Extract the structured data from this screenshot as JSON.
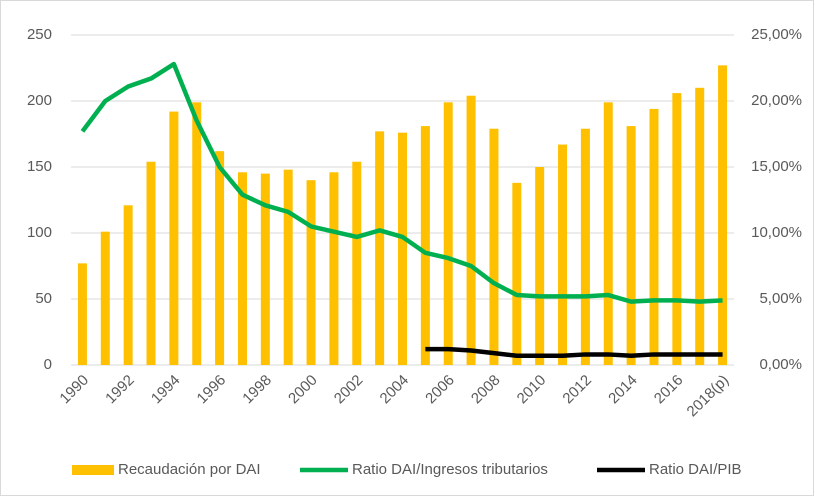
{
  "chart_data": {
    "type": "bar-line",
    "categories": [
      "1990",
      null,
      "1992",
      null,
      "1994",
      null,
      "1996",
      null,
      "1998",
      null,
      "2000",
      null,
      "2002",
      null,
      "2004",
      null,
      "2006",
      null,
      "2008",
      null,
      "2010",
      null,
      "2012",
      null,
      "2014",
      null,
      "2016",
      null,
      "2018(p)"
    ],
    "series": [
      {
        "name": "Recaudación por DAI",
        "type": "bar",
        "color": "#ffc000",
        "axis": "y",
        "values": [
          77,
          101,
          121,
          154,
          192,
          199,
          162,
          146,
          145,
          148,
          140,
          146,
          154,
          177,
          176,
          181,
          199,
          204,
          179,
          138,
          150,
          167,
          179,
          199,
          181,
          194,
          206,
          210,
          227
        ]
      },
      {
        "name": "Ratio DAI/Ingresos tributarios",
        "type": "line",
        "color": "#00b050",
        "axis": "y2",
        "values": [
          17.7,
          20.0,
          21.1,
          21.7,
          22.8,
          18.5,
          15.0,
          12.9,
          12.1,
          11.6,
          10.5,
          10.1,
          9.7,
          10.2,
          9.7,
          8.5,
          8.1,
          7.5,
          6.2,
          5.3,
          5.2,
          5.2,
          5.2,
          5.3,
          4.8,
          4.9,
          4.9,
          4.8,
          4.9
        ]
      },
      {
        "name": "Ratio DAI/PIB",
        "type": "line",
        "color": "#000000",
        "axis": "y2",
        "values": [
          null,
          null,
          null,
          null,
          null,
          null,
          null,
          null,
          null,
          null,
          null,
          null,
          null,
          null,
          null,
          1.2,
          1.2,
          1.1,
          0.9,
          0.7,
          0.7,
          0.7,
          0.8,
          0.8,
          0.7,
          0.8,
          0.8,
          0.8,
          0.8
        ]
      }
    ],
    "ylim": [
      0,
      250
    ],
    "yticks": [
      0,
      50,
      100,
      150,
      200,
      250
    ],
    "y2lim": [
      0,
      25
    ],
    "y2ticks": [
      {
        "value": 0,
        "label": "0,00%"
      },
      {
        "value": 5,
        "label": "5,00%"
      },
      {
        "value": 10,
        "label": "10,00%"
      },
      {
        "value": 15,
        "label": "15,00%"
      },
      {
        "value": 20,
        "label": "20,00%"
      },
      {
        "value": 25,
        "label": "25,00%"
      }
    ],
    "grid": true,
    "legend": "bottom"
  }
}
